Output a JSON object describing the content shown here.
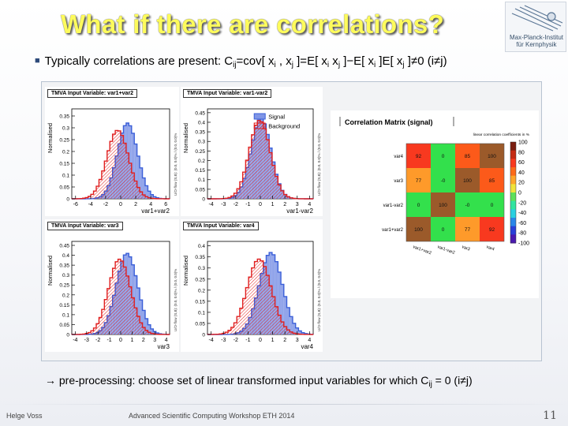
{
  "slide": {
    "title": "What if there are correlations?",
    "logo_line1": "Max-Planck-Institut",
    "logo_line2": "für Kernphysik",
    "bullet_prefix": "Typically correlations are present:  C",
    "bullet_ij": "ij",
    "bullet_mid1": "=cov[ x",
    "bullet_i": "i",
    "bullet_mid2": " , x",
    "bullet_j": "j",
    "bullet_mid3": " ]=E[ x",
    "bullet_i2": "i",
    "bullet_mid4": " x",
    "bullet_j2": "j",
    "bullet_mid5": " ]−E[ x",
    "bullet_i3": "i",
    "bullet_mid6": " ]E[ x",
    "bullet_j3": "j",
    "bullet_end": " ]≠0  (i≠j)",
    "bottom_arrow": "→",
    "bottom_text": " pre-processing:  choose set of linear transformed input variables for which C",
    "bottom_ij": "ij",
    "bottom_end": " = 0 (i≠j)",
    "footer_author": "Helge Voss",
    "footer_event": "Advanced Scientific Computing Workshop ETH 2014",
    "page_number": "11"
  },
  "colors": {
    "signal": "#3b5fd8",
    "signal_fill": "#7f95e6",
    "background": "#e02020",
    "title": "#fdfb5c"
  },
  "chart_data": [
    {
      "type": "bar",
      "title": "TMVA Input Variable: var1+var2",
      "xlabel": "var1+var2",
      "ylabel": "Normalised",
      "yaxis_side_label": "U/O-flow (S,B): (0.0, 0.0)% / (0.0, 0.0)%",
      "xticks": [
        "-6",
        "-4",
        "-2",
        "0",
        "2",
        "4",
        "6"
      ],
      "yticks": [
        "0",
        "0.05",
        "0.1",
        "0.15",
        "0.2",
        "0.25",
        "0.3",
        "0.35"
      ],
      "xlim": [
        -6.5,
        6.5
      ],
      "ylim": [
        0,
        0.38
      ],
      "series": [
        {
          "name": "Signal",
          "mean": 0.9,
          "sigma": 1.35,
          "peak": 0.32
        },
        {
          "name": "Background",
          "mean": -0.4,
          "sigma": 1.45,
          "peak": 0.29
        }
      ]
    },
    {
      "type": "bar",
      "title": "TMVA Input Variable: var1-var2",
      "xlabel": "var1-var2",
      "ylabel": "Normalised",
      "yaxis_side_label": "U/O-flow (S,B): (0.0, 0.0)% / (0.0, 0.0)%",
      "legend": [
        "Signal",
        "Background"
      ],
      "xticks": [
        "-4",
        "-3",
        "-2",
        "-1",
        "0",
        "1",
        "2",
        "3",
        "4"
      ],
      "yticks": [
        "0",
        "0.05",
        "0.1",
        "0.15",
        "0.2",
        "0.25",
        "0.3",
        "0.35",
        "0.4",
        "0.45"
      ],
      "xlim": [
        -4.3,
        4.3
      ],
      "ylim": [
        0,
        0.47
      ],
      "series": [
        {
          "name": "Signal",
          "mean": 0.05,
          "sigma": 0.82,
          "peak": 0.42
        },
        {
          "name": "Background",
          "mean": -0.05,
          "sigma": 0.86,
          "peak": 0.41
        }
      ]
    },
    {
      "type": "bar",
      "title": "TMVA Input Variable: var3",
      "xlabel": "var3",
      "ylabel": "Normalised",
      "yaxis_side_label": "U/O-flow (S,B): (0.0, 0.0)% / (0.0, 0.0)%",
      "xticks": [
        "-4",
        "-3",
        "-2",
        "-1",
        "0",
        "1",
        "2",
        "3",
        "4"
      ],
      "yticks": [
        "0",
        "0.05",
        "0.1",
        "0.15",
        "0.2",
        "0.25",
        "0.3",
        "0.35",
        "0.4",
        "0.45"
      ],
      "xlim": [
        -4.3,
        4.3
      ],
      "ylim": [
        0,
        0.47
      ],
      "series": [
        {
          "name": "Signal",
          "mean": 0.55,
          "sigma": 0.95,
          "peak": 0.41
        },
        {
          "name": "Background",
          "mean": -0.1,
          "sigma": 0.98,
          "peak": 0.38
        }
      ]
    },
    {
      "type": "bar",
      "title": "TMVA Input Variable: var4",
      "xlabel": "var4",
      "ylabel": "Normalised",
      "yaxis_side_label": "U/O-flow (S,B): (0.0, 0.0)% / (0.0, 0.0)%",
      "xticks": [
        "-4",
        "-3",
        "-2",
        "-1",
        "0",
        "1",
        "2",
        "3",
        "4"
      ],
      "yticks": [
        "0",
        "0.05",
        "0.1",
        "0.15",
        "0.2",
        "0.25",
        "0.3",
        "0.35",
        "0.4"
      ],
      "xlim": [
        -4.3,
        4.3
      ],
      "ylim": [
        0,
        0.42
      ],
      "series": [
        {
          "name": "Signal",
          "mean": 0.85,
          "sigma": 0.95,
          "peak": 0.37
        },
        {
          "name": "Background",
          "mean": -0.1,
          "sigma": 1.0,
          "peak": 0.34
        }
      ]
    },
    {
      "type": "heatmap",
      "title": "Correlation Matrix (signal)",
      "colorbar_title": "linear correlation coefficients in %",
      "rows": [
        "var4",
        "var3",
        "var1-var2",
        "var1+var2"
      ],
      "cols": [
        "var1+var2",
        "var1-var2",
        "var3",
        "var4"
      ],
      "values": [
        [
          92,
          0,
          85,
          100
        ],
        [
          77,
          0,
          100,
          85
        ],
        [
          0,
          100,
          0,
          0
        ],
        [
          100,
          0,
          77,
          92
        ]
      ],
      "display_values": [
        [
          "92",
          "0",
          "85",
          "100"
        ],
        [
          "77",
          "-0",
          "100",
          "85"
        ],
        [
          "0",
          "100",
          "-0",
          "0"
        ],
        [
          "100",
          "0",
          "77",
          "92"
        ]
      ],
      "colorbar_ticks": [
        "100",
        "80",
        "60",
        "40",
        "20",
        "0",
        "-20",
        "-40",
        "-60",
        "-80",
        "-100"
      ],
      "zlim": [
        -100,
        100
      ]
    }
  ]
}
